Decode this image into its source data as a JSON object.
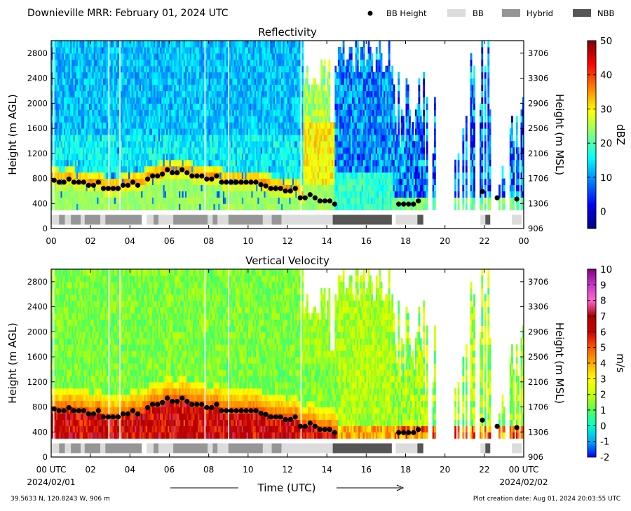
{
  "header": {
    "title": "Downieville MRR:  February 01, 2024 UTC",
    "legend": [
      {
        "label": "BB Height",
        "kind": "dot",
        "color": "#000000"
      },
      {
        "label": "BB",
        "kind": "box",
        "color": "#dcdcdc"
      },
      {
        "label": "Hybrid",
        "kind": "box",
        "color": "#969696"
      },
      {
        "label": "NBB",
        "kind": "box",
        "color": "#555555"
      }
    ]
  },
  "footer": {
    "location": "39.5633 N, 120.8243 W, 906 m",
    "created": "Plot creation date: Aug 01, 2024 20:03:55 UTC",
    "xlabel": "Time (UTC)",
    "start_date": "2024/02/01",
    "end_date": "2024/02/02"
  },
  "chart_data": [
    {
      "type": "heatmap",
      "title": "Reflectivity",
      "ylabel": "Height (m AGL)",
      "ylabel_right": "Height (m MSL)",
      "colorbar_label": "dBZ",
      "colorbar_ticks": [
        "50",
        "40",
        "30",
        "20",
        "10",
        "0"
      ],
      "colorbar_range": [
        -5,
        50
      ],
      "colors": [
        "#00007f",
        "#0000ff",
        "#007fff",
        "#00ffff",
        "#7fff7f",
        "#ffff00",
        "#ff7f00",
        "#ff0000",
        "#7f0000"
      ],
      "yticks": [
        "2800",
        "2400",
        "2000",
        "1600",
        "1200",
        "800",
        "400",
        "0"
      ],
      "yticks_right": [
        "3706",
        "3306",
        "2906",
        "2506",
        "2106",
        "1706",
        "1306",
        "906"
      ],
      "xticks": [
        "00",
        "02",
        "04",
        "06",
        "08",
        "10",
        "12",
        "14",
        "16",
        "18",
        "20",
        "22",
        "00"
      ],
      "xlim_hours": [
        0,
        24
      ],
      "ylim_m_agl": [
        0,
        3000
      ],
      "bb_height": [
        [
          0.15,
          770
        ],
        [
          0.4,
          740
        ],
        [
          0.65,
          740
        ],
        [
          0.9,
          790
        ],
        [
          1.15,
          740
        ],
        [
          1.4,
          740
        ],
        [
          1.65,
          740
        ],
        [
          1.9,
          690
        ],
        [
          2.15,
          690
        ],
        [
          2.4,
          740
        ],
        [
          2.65,
          640
        ],
        [
          2.9,
          640
        ],
        [
          3.15,
          640
        ],
        [
          3.4,
          640
        ],
        [
          3.65,
          690
        ],
        [
          3.9,
          690
        ],
        [
          4.15,
          740
        ],
        [
          4.4,
          690
        ],
        [
          4.9,
          790
        ],
        [
          5.15,
          840
        ],
        [
          5.4,
          840
        ],
        [
          5.65,
          870
        ],
        [
          5.9,
          940
        ],
        [
          6.15,
          890
        ],
        [
          6.4,
          890
        ],
        [
          6.65,
          940
        ],
        [
          6.9,
          890
        ],
        [
          7.15,
          840
        ],
        [
          7.4,
          840
        ],
        [
          7.65,
          840
        ],
        [
          7.9,
          790
        ],
        [
          8.15,
          790
        ],
        [
          8.4,
          840
        ],
        [
          8.65,
          740
        ],
        [
          8.9,
          740
        ],
        [
          9.15,
          740
        ],
        [
          9.4,
          740
        ],
        [
          9.65,
          740
        ],
        [
          9.9,
          740
        ],
        [
          10.15,
          740
        ],
        [
          10.4,
          740
        ],
        [
          10.65,
          700
        ],
        [
          10.9,
          680
        ],
        [
          11.15,
          640
        ],
        [
          11.4,
          640
        ],
        [
          11.65,
          640
        ],
        [
          11.9,
          600
        ],
        [
          12.15,
          600
        ],
        [
          12.4,
          640
        ],
        [
          12.65,
          490
        ],
        [
          12.9,
          490
        ],
        [
          13.15,
          540
        ],
        [
          13.4,
          490
        ],
        [
          13.65,
          440
        ],
        [
          13.9,
          440
        ],
        [
          14.15,
          440
        ],
        [
          14.4,
          390
        ],
        [
          17.65,
          390
        ],
        [
          17.9,
          390
        ],
        [
          18.15,
          390
        ],
        [
          18.4,
          390
        ],
        [
          18.65,
          440
        ],
        [
          21.9,
          590
        ],
        [
          22.65,
          490
        ],
        [
          23.65,
          470
        ]
      ],
      "bb_type_segments": [
        [
          0,
          0.4,
          "BB"
        ],
        [
          0.4,
          0.7,
          "Hybrid"
        ],
        [
          0.7,
          1.0,
          "BB"
        ],
        [
          1.0,
          1.5,
          "Hybrid"
        ],
        [
          1.5,
          1.7,
          "BB"
        ],
        [
          1.7,
          2.5,
          "Hybrid"
        ],
        [
          2.5,
          2.75,
          "BB"
        ],
        [
          2.75,
          4.6,
          "Hybrid"
        ],
        [
          4.85,
          5.2,
          "BB"
        ],
        [
          5.2,
          5.45,
          "Hybrid"
        ],
        [
          5.45,
          6.2,
          "BB"
        ],
        [
          6.2,
          7.95,
          "Hybrid"
        ],
        [
          7.95,
          8.2,
          "BB"
        ],
        [
          8.2,
          8.45,
          "Hybrid"
        ],
        [
          8.45,
          9.0,
          "BB"
        ],
        [
          9.0,
          10.75,
          "Hybrid"
        ],
        [
          10.75,
          11.2,
          "BB"
        ],
        [
          11.2,
          11.7,
          "Hybrid"
        ],
        [
          11.7,
          14.3,
          "BB"
        ],
        [
          14.3,
          17.3,
          "NBB"
        ],
        [
          17.5,
          18.6,
          "BB"
        ],
        [
          18.6,
          18.9,
          "NBB"
        ],
        [
          21.8,
          22.05,
          "BB"
        ],
        [
          22.05,
          22.3,
          "NBB"
        ],
        [
          23.4,
          23.9,
          "BB"
        ]
      ]
    },
    {
      "type": "heatmap",
      "title": "Vertical Velocity",
      "ylabel": "Height (m AGL)",
      "ylabel_right": "Height (m MSL)",
      "colorbar_label": "m/s",
      "colorbar_ticks": [
        "10",
        "9",
        "8",
        "7",
        "6",
        "5",
        "4",
        "3",
        "2",
        "1",
        "0",
        "-1",
        "-2"
      ],
      "colorbar_range": [
        -2,
        10
      ],
      "colors": [
        "#0000ff",
        "#00aaff",
        "#00ffcc",
        "#55ff55",
        "#ccff00",
        "#ffff00",
        "#ffaa00",
        "#ff5500",
        "#cc0000",
        "#aa0000",
        "#ff66cc",
        "#cc33cc",
        "#800080"
      ],
      "yticks": [
        "2800",
        "2400",
        "2000",
        "1600",
        "1200",
        "800",
        "400",
        "0"
      ],
      "yticks_right": [
        "3706",
        "3306",
        "2906",
        "2506",
        "2106",
        "1706",
        "1306",
        "906"
      ],
      "xticks": [
        "00 UTC",
        "02",
        "04",
        "06",
        "08",
        "10",
        "12",
        "14",
        "16",
        "18",
        "20",
        "22",
        "00 UTC"
      ],
      "xlim_hours": [
        0,
        24
      ],
      "ylim_m_agl": [
        0,
        3000
      ],
      "bb_height": [
        [
          0.15,
          770
        ],
        [
          0.4,
          740
        ],
        [
          0.65,
          740
        ],
        [
          0.9,
          790
        ],
        [
          1.15,
          740
        ],
        [
          1.4,
          740
        ],
        [
          1.65,
          740
        ],
        [
          1.9,
          690
        ],
        [
          2.15,
          690
        ],
        [
          2.4,
          740
        ],
        [
          2.65,
          640
        ],
        [
          2.9,
          640
        ],
        [
          3.15,
          640
        ],
        [
          3.4,
          640
        ],
        [
          3.65,
          690
        ],
        [
          3.9,
          690
        ],
        [
          4.15,
          740
        ],
        [
          4.4,
          690
        ],
        [
          4.9,
          790
        ],
        [
          5.15,
          840
        ],
        [
          5.4,
          840
        ],
        [
          5.65,
          870
        ],
        [
          5.9,
          940
        ],
        [
          6.15,
          890
        ],
        [
          6.4,
          890
        ],
        [
          6.65,
          940
        ],
        [
          6.9,
          890
        ],
        [
          7.15,
          840
        ],
        [
          7.4,
          840
        ],
        [
          7.65,
          840
        ],
        [
          7.9,
          790
        ],
        [
          8.15,
          790
        ],
        [
          8.4,
          840
        ],
        [
          8.65,
          740
        ],
        [
          8.9,
          740
        ],
        [
          9.15,
          740
        ],
        [
          9.4,
          740
        ],
        [
          9.65,
          740
        ],
        [
          9.9,
          740
        ],
        [
          10.15,
          740
        ],
        [
          10.4,
          740
        ],
        [
          10.65,
          700
        ],
        [
          10.9,
          680
        ],
        [
          11.15,
          640
        ],
        [
          11.4,
          640
        ],
        [
          11.65,
          640
        ],
        [
          11.9,
          600
        ],
        [
          12.15,
          600
        ],
        [
          12.4,
          640
        ],
        [
          12.65,
          490
        ],
        [
          12.9,
          490
        ],
        [
          13.15,
          540
        ],
        [
          13.4,
          490
        ],
        [
          13.65,
          440
        ],
        [
          13.9,
          440
        ],
        [
          14.15,
          440
        ],
        [
          14.4,
          390
        ],
        [
          17.65,
          390
        ],
        [
          17.9,
          390
        ],
        [
          18.15,
          390
        ],
        [
          18.4,
          390
        ],
        [
          18.65,
          440
        ],
        [
          21.9,
          590
        ],
        [
          22.65,
          490
        ],
        [
          23.65,
          470
        ]
      ],
      "bb_type_segments": [
        [
          0,
          0.4,
          "BB"
        ],
        [
          0.4,
          0.7,
          "Hybrid"
        ],
        [
          0.7,
          1.0,
          "BB"
        ],
        [
          1.0,
          1.5,
          "Hybrid"
        ],
        [
          1.5,
          1.7,
          "BB"
        ],
        [
          1.7,
          2.5,
          "Hybrid"
        ],
        [
          2.5,
          2.75,
          "BB"
        ],
        [
          2.75,
          4.6,
          "Hybrid"
        ],
        [
          4.85,
          5.2,
          "BB"
        ],
        [
          5.2,
          5.45,
          "Hybrid"
        ],
        [
          5.45,
          6.2,
          "BB"
        ],
        [
          6.2,
          7.95,
          "Hybrid"
        ],
        [
          7.95,
          8.2,
          "BB"
        ],
        [
          8.2,
          8.45,
          "Hybrid"
        ],
        [
          8.45,
          9.0,
          "BB"
        ],
        [
          9.0,
          10.75,
          "Hybrid"
        ],
        [
          10.75,
          11.2,
          "BB"
        ],
        [
          11.2,
          11.7,
          "Hybrid"
        ],
        [
          11.7,
          14.3,
          "BB"
        ],
        [
          14.3,
          17.3,
          "NBB"
        ],
        [
          17.5,
          18.6,
          "BB"
        ],
        [
          18.6,
          18.9,
          "NBB"
        ],
        [
          21.8,
          22.05,
          "BB"
        ],
        [
          22.05,
          22.3,
          "NBB"
        ],
        [
          23.4,
          23.9,
          "BB"
        ]
      ]
    }
  ]
}
